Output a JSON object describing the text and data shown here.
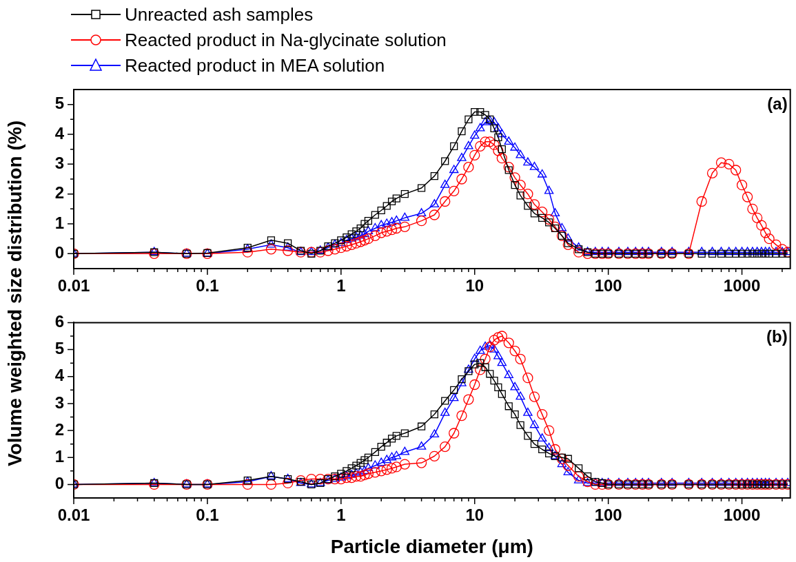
{
  "chart_data": [
    {
      "type": "line",
      "ylabel": "Volume weighted size distribution (%)",
      "annotations": [
        "(a)"
      ],
      "legend": "top left",
      "log": "x",
      "xlim": [
        0.01,
        2300
      ],
      "ylim": [
        -0.5,
        5.5
      ],
      "xticks": [
        0.01,
        {
          "value": 0.02,
          "label": null
        },
        {
          "value": 0.03,
          "label": null
        },
        {
          "value": 0.04,
          "label": null
        },
        {
          "value": 0.05,
          "label": null
        },
        {
          "value": 0.06,
          "label": null
        },
        {
          "value": 0.07,
          "label": null
        },
        {
          "value": 0.08,
          "label": null
        },
        {
          "value": 0.09,
          "label": null
        },
        0.1,
        {
          "value": 0.2,
          "label": null
        },
        {
          "value": 0.3,
          "label": null
        },
        {
          "value": 0.4,
          "label": null
        },
        {
          "value": 0.5,
          "label": null
        },
        {
          "value": 0.6,
          "label": null
        },
        {
          "value": 0.7,
          "label": null
        },
        {
          "value": 0.8,
          "label": null
        },
        {
          "value": 0.9,
          "label": null
        },
        1,
        {
          "value": 2,
          "label": null
        },
        {
          "value": 3,
          "label": null
        },
        {
          "value": 4,
          "label": null
        },
        {
          "value": 5,
          "label": null
        },
        {
          "value": 6,
          "label": null
        },
        {
          "value": 7,
          "label": null
        },
        {
          "value": 8,
          "label": null
        },
        {
          "value": 9,
          "label": null
        },
        10,
        {
          "value": 20,
          "label": null
        },
        {
          "value": 30,
          "label": null
        },
        {
          "value": 40,
          "label": null
        },
        {
          "value": 50,
          "label": null
        },
        {
          "value": 60,
          "label": null
        },
        {
          "value": 70,
          "label": null
        },
        {
          "value": 80,
          "label": null
        },
        {
          "value": 90,
          "label": null
        },
        100,
        {
          "value": 200,
          "label": null
        },
        {
          "value": 300,
          "label": null
        },
        {
          "value": 400,
          "label": null
        },
        {
          "value": 500,
          "label": null
        },
        {
          "value": 600,
          "label": null
        },
        {
          "value": 700,
          "label": null
        },
        {
          "value": 800,
          "label": null
        },
        {
          "value": 900,
          "label": null
        },
        1000,
        {
          "value": 2000,
          "label": null
        }
      ],
      "yticks": [
        0,
        {
          "value": 0.5,
          "label": null
        },
        1,
        {
          "value": 1.5,
          "label": null
        },
        2,
        {
          "value": 2.5,
          "label": null
        },
        3,
        {
          "value": 3.5,
          "label": null
        },
        4,
        {
          "value": 4.5,
          "label": null
        },
        5
      ],
      "x": [
        0.01,
        0.04,
        0.07,
        0.1,
        0.2,
        0.3,
        0.4,
        0.5,
        0.6,
        0.7,
        0.8,
        0.9,
        1,
        1.1,
        1.2,
        1.3,
        1.4,
        1.5,
        1.6,
        1.8,
        2,
        2.2,
        2.4,
        2.6,
        3,
        4,
        5,
        6,
        7,
        8,
        9,
        10,
        11,
        12,
        13,
        14,
        15,
        16,
        18,
        20,
        22,
        25,
        28,
        32,
        36,
        40,
        45,
        50,
        60,
        70,
        80,
        90,
        100,
        120,
        140,
        160,
        180,
        200,
        250,
        300,
        400,
        500,
        600,
        700,
        800,
        900,
        1000,
        1100,
        1200,
        1300,
        1400,
        1500,
        1600,
        1800,
        2000,
        2200
      ],
      "series": [
        {
          "name": "Unreacted ash samples",
          "color": "#000000",
          "marker": "square",
          "values": [
            0,
            0.05,
            0,
            0.02,
            0.2,
            0.45,
            0.35,
            0.1,
            0,
            0.1,
            0.25,
            0.35,
            0.45,
            0.55,
            0.65,
            0.75,
            0.85,
            1.0,
            1.1,
            1.3,
            1.45,
            1.6,
            1.75,
            1.85,
            2.0,
            2.2,
            2.6,
            3.1,
            3.6,
            4.1,
            4.5,
            4.75,
            4.75,
            4.65,
            4.5,
            4.2,
            3.9,
            3.5,
            2.8,
            2.3,
            1.95,
            1.6,
            1.35,
            1.2,
            1.05,
            0.85,
            0.6,
            0.35,
            0.15,
            0.05,
            0,
            0,
            0,
            0,
            0,
            0,
            0,
            0,
            0,
            0,
            0,
            0,
            0,
            0,
            0,
            0,
            0,
            0,
            0,
            0,
            0,
            0,
            0,
            0,
            0,
            0
          ]
        },
        {
          "name": "Reacted product in Na-glycinate solution",
          "color": "#ff0000",
          "marker": "circle",
          "values": [
            0,
            0,
            0,
            0,
            0.05,
            0.15,
            0.1,
            0.05,
            0.05,
            0.05,
            0.1,
            0.15,
            0.2,
            0.25,
            0.3,
            0.35,
            0.4,
            0.45,
            0.5,
            0.6,
            0.7,
            0.75,
            0.8,
            0.85,
            0.9,
            1.1,
            1.3,
            1.75,
            2.1,
            2.5,
            2.9,
            3.3,
            3.6,
            3.75,
            3.75,
            3.65,
            3.45,
            3.2,
            2.9,
            2.55,
            2.3,
            2.0,
            1.65,
            1.4,
            1.15,
            0.9,
            0.6,
            0.3,
            0.05,
            0,
            0,
            0,
            0,
            0,
            0,
            0,
            0,
            0,
            0,
            0,
            0,
            1.75,
            2.7,
            3.05,
            3.0,
            2.8,
            2.3,
            1.9,
            1.5,
            1.2,
            0.95,
            0.7,
            0.5,
            0.3,
            0.15,
            0.05
          ]
        },
        {
          "name": "Reacted product in MEA solution",
          "color": "#0000ff",
          "marker": "triangle",
          "values": [
            0,
            0.05,
            0,
            0,
            0.15,
            0.3,
            0.2,
            0.05,
            0.05,
            0.1,
            0.2,
            0.3,
            0.35,
            0.45,
            0.5,
            0.55,
            0.6,
            0.65,
            0.75,
            0.85,
            0.95,
            1.0,
            1.05,
            1.1,
            1.2,
            1.35,
            1.65,
            2.3,
            2.8,
            3.2,
            3.6,
            3.95,
            4.2,
            4.4,
            4.45,
            4.4,
            4.2,
            4.0,
            3.75,
            3.55,
            3.3,
            3.05,
            2.9,
            2.65,
            2.1,
            1.35,
            0.85,
            0.5,
            0.2,
            0.05,
            0.05,
            0.05,
            0.05,
            0.05,
            0.05,
            0.05,
            0.05,
            0.05,
            0.05,
            0.05,
            0.05,
            0.05,
            0.05,
            0.05,
            0.05,
            0.05,
            0.05,
            0.05,
            0.05,
            0.05,
            0.05,
            0.05,
            0.05,
            0.05,
            0.05,
            0.05
          ]
        }
      ]
    },
    {
      "type": "line",
      "xlabel": "Particle diameter (μm)",
      "annotations": [
        "(b)"
      ],
      "log": "x",
      "xlim": [
        0.01,
        2300
      ],
      "ylim": [
        -0.5,
        6
      ],
      "xticks": [
        0.01,
        {
          "value": 0.02,
          "label": null
        },
        {
          "value": 0.03,
          "label": null
        },
        {
          "value": 0.04,
          "label": null
        },
        {
          "value": 0.05,
          "label": null
        },
        {
          "value": 0.06,
          "label": null
        },
        {
          "value": 0.07,
          "label": null
        },
        {
          "value": 0.08,
          "label": null
        },
        {
          "value": 0.09,
          "label": null
        },
        0.1,
        {
          "value": 0.2,
          "label": null
        },
        {
          "value": 0.3,
          "label": null
        },
        {
          "value": 0.4,
          "label": null
        },
        {
          "value": 0.5,
          "label": null
        },
        {
          "value": 0.6,
          "label": null
        },
        {
          "value": 0.7,
          "label": null
        },
        {
          "value": 0.8,
          "label": null
        },
        {
          "value": 0.9,
          "label": null
        },
        1,
        {
          "value": 2,
          "label": null
        },
        {
          "value": 3,
          "label": null
        },
        {
          "value": 4,
          "label": null
        },
        {
          "value": 5,
          "label": null
        },
        {
          "value": 6,
          "label": null
        },
        {
          "value": 7,
          "label": null
        },
        {
          "value": 8,
          "label": null
        },
        {
          "value": 9,
          "label": null
        },
        10,
        {
          "value": 20,
          "label": null
        },
        {
          "value": 30,
          "label": null
        },
        {
          "value": 40,
          "label": null
        },
        {
          "value": 50,
          "label": null
        },
        {
          "value": 60,
          "label": null
        },
        {
          "value": 70,
          "label": null
        },
        {
          "value": 80,
          "label": null
        },
        {
          "value": 90,
          "label": null
        },
        100,
        {
          "value": 200,
          "label": null
        },
        {
          "value": 300,
          "label": null
        },
        {
          "value": 400,
          "label": null
        },
        {
          "value": 500,
          "label": null
        },
        {
          "value": 600,
          "label": null
        },
        {
          "value": 700,
          "label": null
        },
        {
          "value": 800,
          "label": null
        },
        {
          "value": 900,
          "label": null
        },
        1000,
        {
          "value": 2000,
          "label": null
        }
      ],
      "yticks": [
        0,
        {
          "value": 0.5,
          "label": null
        },
        1,
        {
          "value": 1.5,
          "label": null
        },
        2,
        {
          "value": 2.5,
          "label": null
        },
        3,
        {
          "value": 3.5,
          "label": null
        },
        4,
        {
          "value": 4.5,
          "label": null
        },
        5,
        {
          "value": 5.5,
          "label": null
        },
        6
      ],
      "x": [
        0.01,
        0.04,
        0.07,
        0.1,
        0.2,
        0.3,
        0.4,
        0.5,
        0.6,
        0.7,
        0.8,
        0.9,
        1,
        1.1,
        1.2,
        1.3,
        1.4,
        1.5,
        1.6,
        1.8,
        2,
        2.2,
        2.4,
        2.6,
        3,
        4,
        5,
        6,
        7,
        8,
        9,
        10,
        11,
        12,
        13,
        14,
        15,
        16,
        18,
        20,
        22,
        25,
        28,
        32,
        36,
        40,
        45,
        50,
        60,
        70,
        80,
        90,
        100,
        120,
        140,
        160,
        180,
        200,
        250,
        300,
        400,
        500,
        600,
        700,
        800,
        900,
        1000,
        1100,
        1200,
        1300,
        1400,
        1500,
        1600,
        1800,
        2000,
        2200
      ],
      "series": [
        {
          "color": "#000000",
          "marker": "square",
          "values": [
            0,
            0.05,
            0,
            0,
            0.15,
            0.3,
            0.2,
            0.1,
            0,
            0.05,
            0.2,
            0.3,
            0.4,
            0.5,
            0.6,
            0.7,
            0.8,
            0.9,
            1.0,
            1.2,
            1.4,
            1.55,
            1.7,
            1.8,
            1.9,
            2.15,
            2.6,
            3.1,
            3.5,
            3.9,
            4.2,
            4.45,
            4.5,
            4.35,
            4.1,
            3.85,
            3.6,
            3.35,
            2.9,
            2.6,
            2.2,
            1.8,
            1.5,
            1.3,
            1.15,
            1.05,
            1.0,
            0.95,
            0.6,
            0.3,
            0.1,
            0.05,
            0,
            0,
            0,
            0,
            0,
            0,
            0,
            0,
            0,
            0,
            0,
            0,
            0,
            0,
            0,
            0,
            0,
            0,
            0,
            0,
            0,
            0,
            0,
            0
          ]
        },
        {
          "color": "#ff0000",
          "marker": "circle",
          "values": [
            0,
            0,
            0,
            0,
            0,
            0,
            0.05,
            0.15,
            0.2,
            0.2,
            0.2,
            0.2,
            0.2,
            0.25,
            0.25,
            0.3,
            0.3,
            0.35,
            0.4,
            0.45,
            0.5,
            0.55,
            0.6,
            0.65,
            0.75,
            0.8,
            1.05,
            1.4,
            1.9,
            2.55,
            3.15,
            3.7,
            4.25,
            4.65,
            5.1,
            5.35,
            5.45,
            5.5,
            5.25,
            4.95,
            4.65,
            3.95,
            3.25,
            2.6,
            2.0,
            1.3,
            0.95,
            0.7,
            0.3,
            0.1,
            0,
            0,
            0,
            0,
            0,
            0,
            0,
            0,
            0,
            0,
            0,
            0,
            0,
            0,
            0,
            0,
            0,
            0,
            0,
            0,
            0,
            0,
            0,
            0,
            0,
            0
          ]
        },
        {
          "color": "#0000ff",
          "marker": "triangle",
          "values": [
            0,
            0.05,
            0,
            0,
            0.1,
            0.3,
            0.2,
            0.05,
            0,
            0.05,
            0.15,
            0.2,
            0.25,
            0.3,
            0.35,
            0.4,
            0.45,
            0.5,
            0.6,
            0.7,
            0.8,
            0.9,
            1.0,
            1.05,
            1.2,
            1.4,
            1.85,
            2.65,
            3.2,
            3.75,
            4.25,
            4.65,
            4.95,
            5.1,
            5.15,
            5.0,
            4.75,
            4.5,
            4.05,
            3.6,
            3.25,
            2.65,
            2.2,
            1.7,
            1.35,
            1.05,
            0.75,
            0.45,
            0.15,
            0.05,
            0.05,
            0.05,
            0.05,
            0.05,
            0.05,
            0.05,
            0.05,
            0.05,
            0.05,
            0.05,
            0.05,
            0.05,
            0.05,
            0.05,
            0.05,
            0.05,
            0.05,
            0.05,
            0.05,
            0.05,
            0.05,
            0.05,
            0.05,
            0.05,
            0.05,
            0.05
          ]
        }
      ]
    }
  ]
}
